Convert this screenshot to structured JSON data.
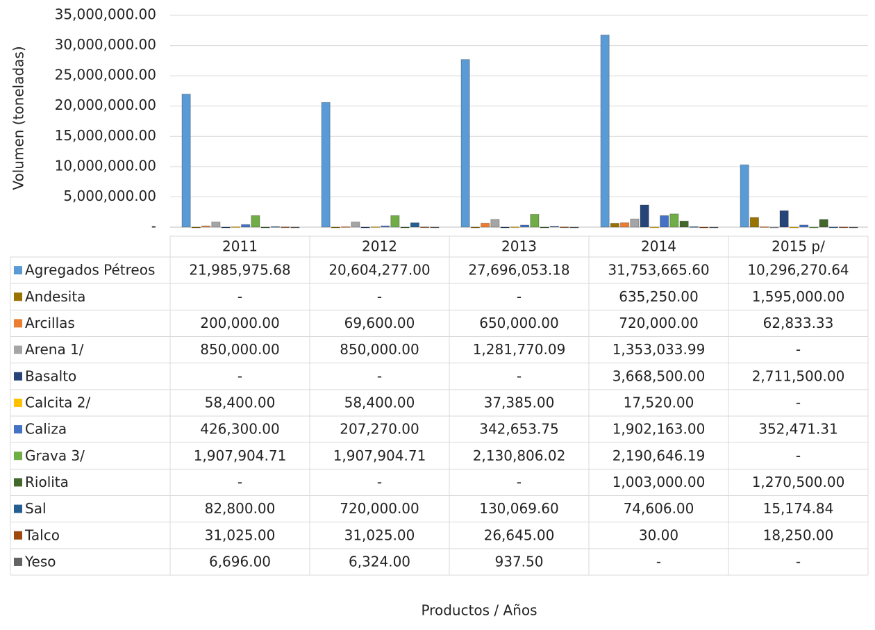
{
  "chart_data": {
    "type": "bar",
    "y_label": "Volumen (toneladas)",
    "x_label": "Productos / Años",
    "categories": [
      "2011",
      "2012",
      "2013",
      "2014",
      "2015 p/"
    ],
    "ylim": [
      0,
      35000000
    ],
    "yticks": [
      {
        "value": 0,
        "label": "-"
      },
      {
        "value": 5000000,
        "label": "5,000,000.00"
      },
      {
        "value": 10000000,
        "label": "10,000,000.00"
      },
      {
        "value": 15000000,
        "label": "15,000,000.00"
      },
      {
        "value": 20000000,
        "label": "20,000,000.00"
      },
      {
        "value": 25000000,
        "label": "25,000,000.00"
      },
      {
        "value": 30000000,
        "label": "30,000,000.00"
      },
      {
        "value": 35000000,
        "label": "35,000,000.00"
      }
    ],
    "grid": true,
    "series": [
      {
        "name": "Agregados Pétreos",
        "color": "#5b9bd5",
        "values": [
          21985975.68,
          20604277,
          27696053.18,
          31753665.6,
          10296270.64
        ],
        "value_labels": [
          "21,985,975.68",
          "20,604,277.00",
          "27,696,053.18",
          "31,753,665.60",
          "10,296,270.64"
        ]
      },
      {
        "name": "Andesita",
        "color": "#997300",
        "values": [
          0,
          0,
          0,
          635250,
          1595000
        ],
        "value_labels": [
          "-",
          "-",
          "-",
          "635,250.00",
          "1,595,000.00"
        ]
      },
      {
        "name": "Arcillas",
        "color": "#ed7d31",
        "values": [
          200000,
          69600,
          650000,
          720000,
          62833.33
        ],
        "value_labels": [
          "200,000.00",
          "69,600.00",
          "650,000.00",
          "720,000.00",
          "62,833.33"
        ]
      },
      {
        "name": "Arena 1/",
        "color": "#a5a5a5",
        "values": [
          850000,
          850000,
          1281770.09,
          1353033.99,
          0
        ],
        "value_labels": [
          "850,000.00",
          "850,000.00",
          "1,281,770.09",
          "1,353,033.99",
          "-"
        ]
      },
      {
        "name": "Basalto",
        "color": "#264478",
        "values": [
          0,
          0,
          0,
          3668500,
          2711500
        ],
        "value_labels": [
          "-",
          "-",
          "-",
          "3,668,500.00",
          "2,711,500.00"
        ]
      },
      {
        "name": "Calcita 2/",
        "color": "#ffc000",
        "values": [
          58400,
          58400,
          37385,
          17520,
          0
        ],
        "value_labels": [
          "58,400.00",
          "58,400.00",
          "37,385.00",
          "17,520.00",
          "-"
        ]
      },
      {
        "name": "Caliza",
        "color": "#4472c4",
        "values": [
          426300,
          207270,
          342653.75,
          1902163,
          352471.31
        ],
        "value_labels": [
          "426,300.00",
          "207,270.00",
          "342,653.75",
          "1,902,163.00",
          "352,471.31"
        ]
      },
      {
        "name": "Grava 3/",
        "color": "#70ad47",
        "values": [
          1907904.71,
          1907904.71,
          2130806.02,
          2190646.19,
          0
        ],
        "value_labels": [
          "1,907,904.71",
          "1,907,904.71",
          "2,130,806.02",
          "2,190,646.19",
          "-"
        ]
      },
      {
        "name": "Riolita",
        "color": "#43682b",
        "values": [
          0,
          0,
          0,
          1003000,
          1270500
        ],
        "value_labels": [
          "-",
          "-",
          "-",
          "1,003,000.00",
          "1,270,500.00"
        ]
      },
      {
        "name": "Sal",
        "color": "#255e91",
        "values": [
          82800,
          720000,
          130069.6,
          74606,
          15174.84
        ],
        "value_labels": [
          "82,800.00",
          "720,000.00",
          "130,069.60",
          "74,606.00",
          "15,174.84"
        ]
      },
      {
        "name": "Talco",
        "color": "#9e480e",
        "values": [
          31025,
          31025,
          26645,
          30,
          18250
        ],
        "value_labels": [
          "31,025.00",
          "31,025.00",
          "26,645.00",
          "30.00",
          "18,250.00"
        ]
      },
      {
        "name": "Yeso",
        "color": "#636363",
        "values": [
          6696,
          6324,
          937.5,
          0,
          0
        ],
        "value_labels": [
          "6,696.00",
          "6,324.00",
          "937.50",
          "-",
          "-"
        ]
      }
    ]
  }
}
